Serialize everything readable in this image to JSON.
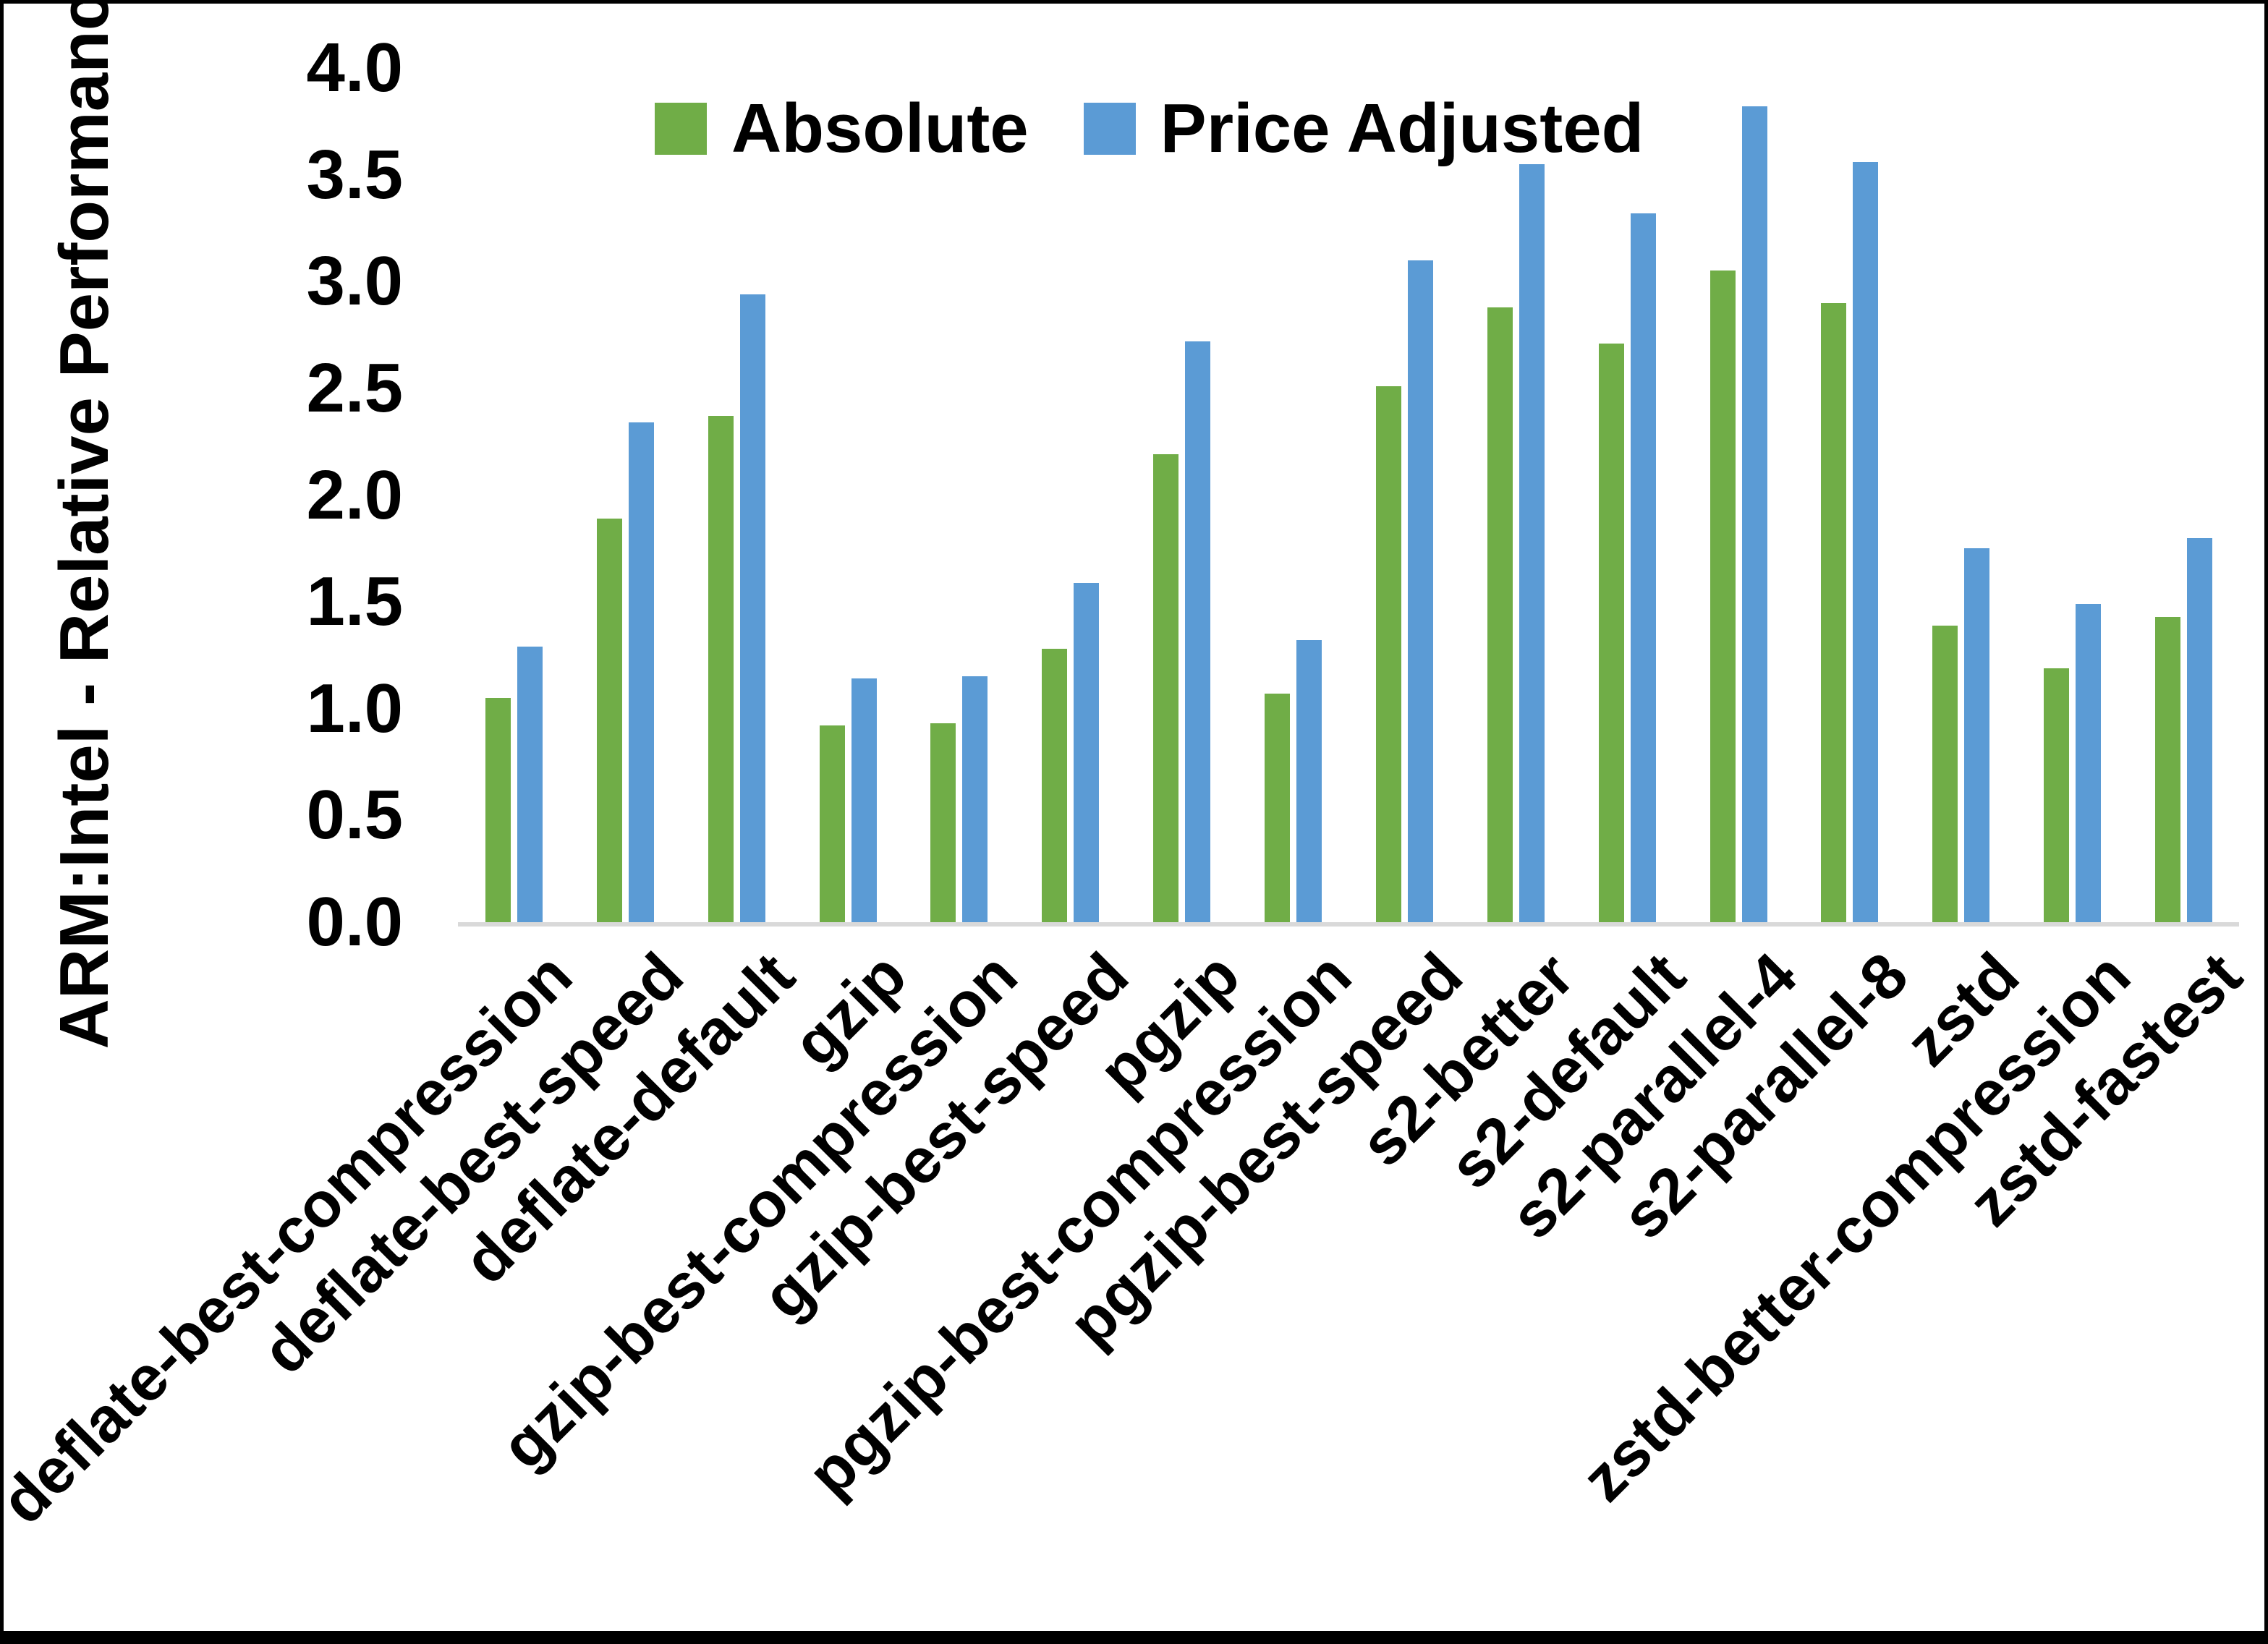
{
  "figure": {
    "background": "#ffffff",
    "border_color": "#000000",
    "axis_line_color": "#d9d9d9"
  },
  "chart_data": {
    "type": "bar",
    "title": "",
    "xlabel": "",
    "ylabel": "ARM:Intel - Relative Performance",
    "ylim": [
      0.0,
      4.0
    ],
    "ytick_labels": [
      "0.0",
      "0.5",
      "1.0",
      "1.5",
      "2.0",
      "2.5",
      "3.0",
      "3.5",
      "4.0"
    ],
    "grid": false,
    "legend": {
      "position": "top",
      "entries": [
        {
          "label": "Absolute",
          "color": "#70AD47"
        },
        {
          "label": "Price Adjusted",
          "color": "#5B9BD5"
        }
      ]
    },
    "categories": [
      "deflate-best-compression",
      "deflate-best-speed",
      "deflate-default",
      "gzip",
      "gzip-best-compression",
      "gzip-best-speed",
      "pgzip",
      "pgzip-best-compression",
      "pgzip-best-speed",
      "s2-better",
      "s2-default",
      "s2-parallel-4",
      "s2-parallel-8",
      "zstd",
      "zstd-better-compression",
      "zstd-fastest"
    ],
    "series": [
      {
        "name": "Absolute",
        "color": "#70AD47",
        "values": [
          1.05,
          1.89,
          2.37,
          0.92,
          0.93,
          1.28,
          2.19,
          1.07,
          2.51,
          2.88,
          2.71,
          3.05,
          2.9,
          1.39,
          1.19,
          1.43
        ]
      },
      {
        "name": "Price Adjusted",
        "color": "#5B9BD5",
        "values": [
          1.29,
          2.34,
          2.94,
          1.14,
          1.15,
          1.59,
          2.72,
          1.32,
          3.1,
          3.55,
          3.32,
          3.82,
          3.56,
          1.75,
          1.49,
          1.8
        ]
      }
    ]
  }
}
